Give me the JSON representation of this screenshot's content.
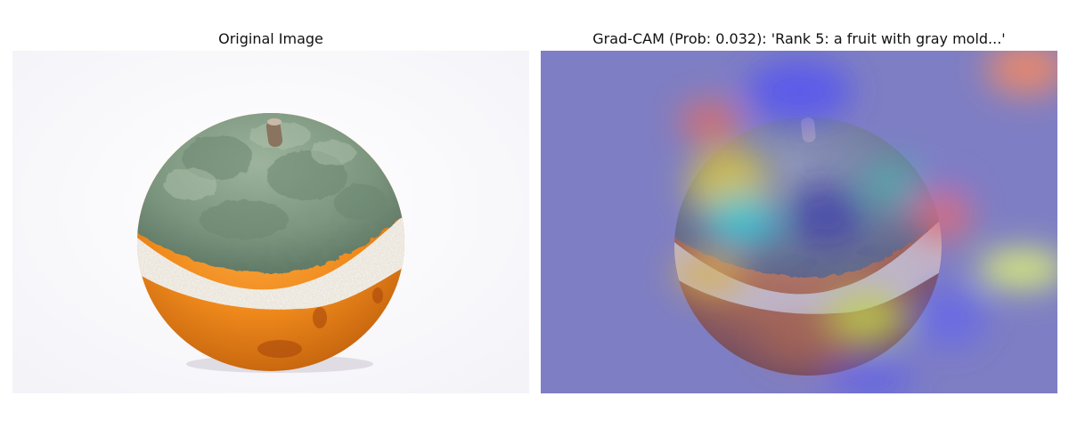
{
  "figure": {
    "panels": [
      {
        "title": "Original Image",
        "image_subject": "orange-with-gray-green-mold"
      },
      {
        "title": "Grad-CAM (Prob: 0.032): 'Rank 5: a fruit with gray mold...'",
        "image_subject": "gradcam-heatmap-overlay-on-moldy-orange",
        "heatmap_colormap": "jet"
      }
    ]
  },
  "colors": {
    "orange_peel": "#f08a1c",
    "mold_green": "#7f9a82",
    "mold_white": "#e9e4da",
    "heatmap_base": "#7f7fc4"
  }
}
